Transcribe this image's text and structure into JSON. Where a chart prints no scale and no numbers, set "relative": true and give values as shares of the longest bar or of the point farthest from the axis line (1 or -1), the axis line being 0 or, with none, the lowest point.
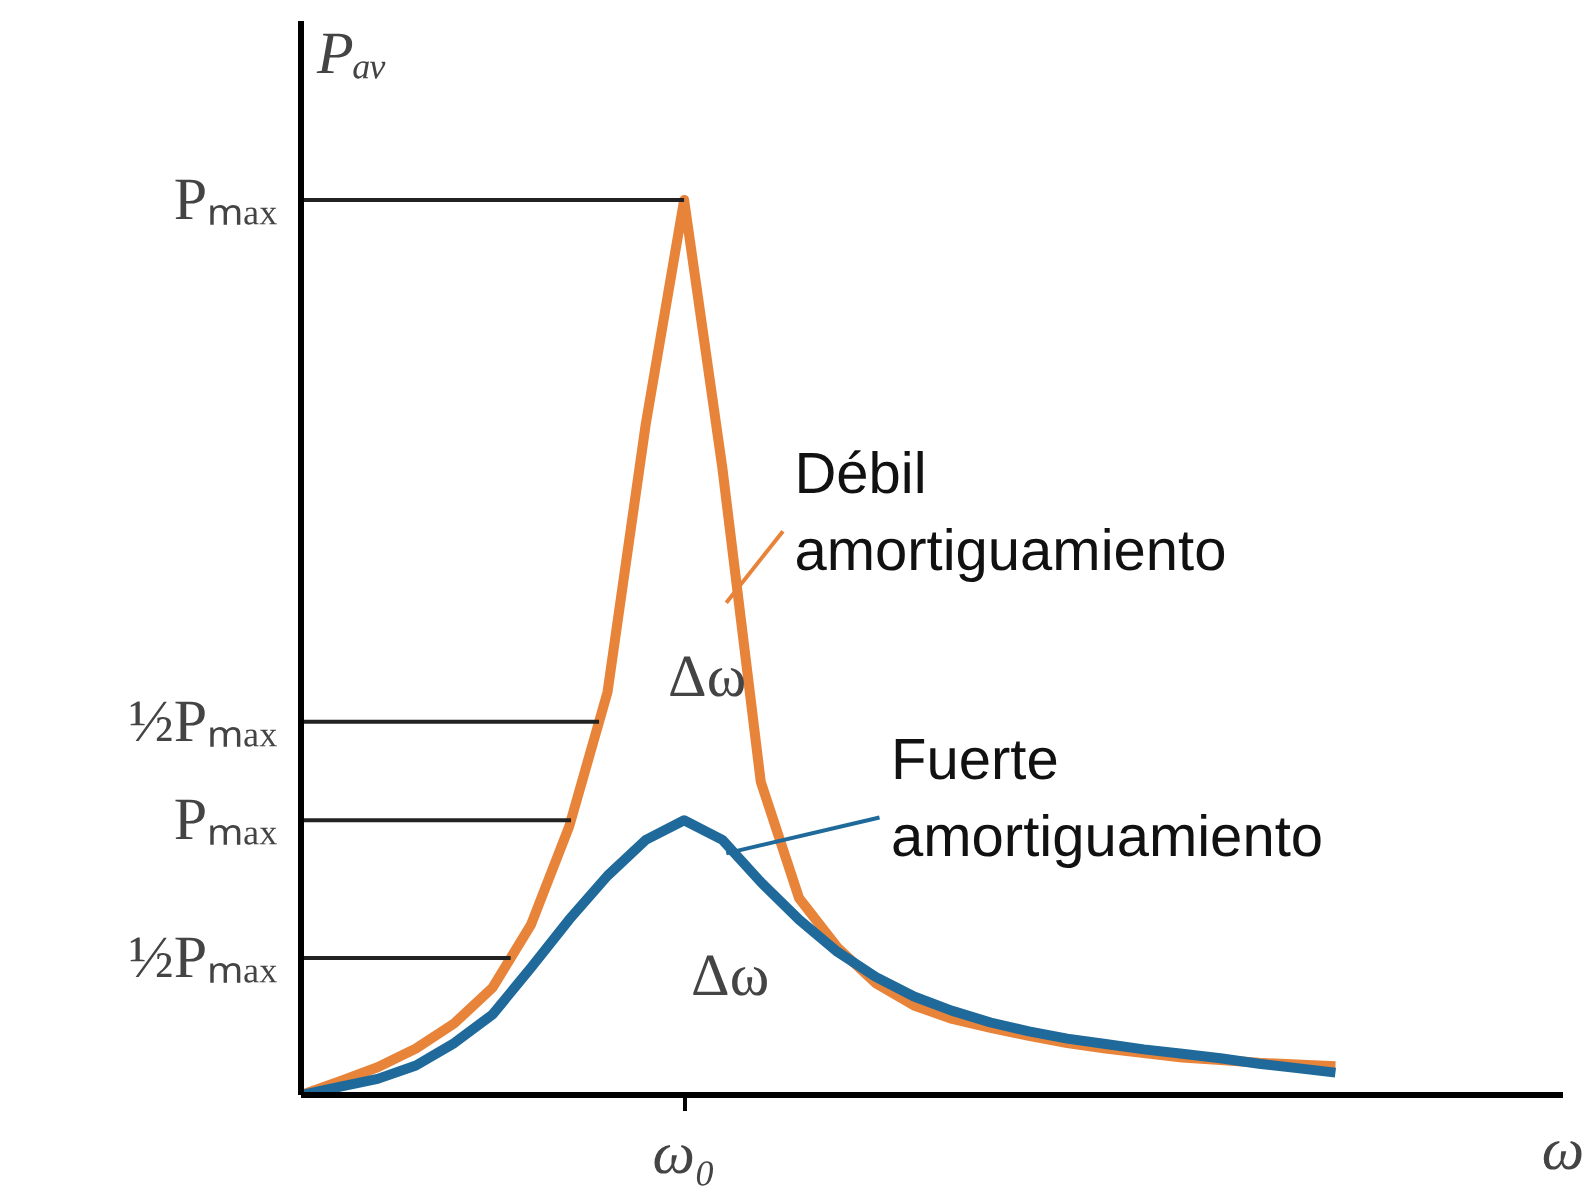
{
  "chart_data": {
    "type": "line",
    "relative": true,
    "xlabel": "ω",
    "ylabel": "Pₐᵥ",
    "categories": [
      null,
      null,
      null,
      null,
      null,
      null,
      null,
      null,
      null,
      null,
      null,
      null,
      null,
      null,
      null,
      null,
      null,
      null,
      null,
      null,
      null,
      null,
      null,
      null,
      null,
      null,
      null,
      null
    ],
    "series": [
      {
        "name": "Débil\namortiguamiento",
        "color": "#e8833a",
        "values": [
          0,
          0.015,
          0.031,
          0.052,
          0.08,
          0.12,
          0.19,
          0.3,
          0.45,
          0.75,
          1.0,
          0.7,
          0.35,
          0.22,
          0.165,
          0.125,
          0.1,
          0.085,
          0.075,
          0.066,
          0.058,
          0.052,
          0.047,
          0.042,
          0.039,
          0.036,
          0.034,
          0.032
        ]
      },
      {
        "name": "Fuerte\namortiguamiento",
        "color": "#1f6a9a",
        "values": [
          0,
          0.009,
          0.018,
          0.033,
          0.058,
          0.09,
          0.142,
          0.196,
          0.245,
          0.285,
          0.307,
          0.285,
          0.238,
          0.196,
          0.16,
          0.132,
          0.11,
          0.094,
          0.081,
          0.071,
          0.063,
          0.057,
          0.051,
          0.046,
          0.041,
          0.035,
          0.03,
          0.025
        ]
      }
    ],
    "ref_lines": [
      {
        "axis": "y",
        "value": 1.0,
        "label": "Pₘₐₓ"
      },
      {
        "axis": "y",
        "value": 0.417,
        "label": "½Pₘₐₓ"
      },
      {
        "axis": "y",
        "value": 0.307,
        "label": "Pₘₐₓ"
      },
      {
        "axis": "y",
        "value": 0.153,
        "label": "½Pₘₐₓ"
      }
    ],
    "annotations": [
      "ω₀",
      "Δω",
      "Δω"
    ],
    "grid": false,
    "marker": "none",
    "line_style": "solid"
  }
}
